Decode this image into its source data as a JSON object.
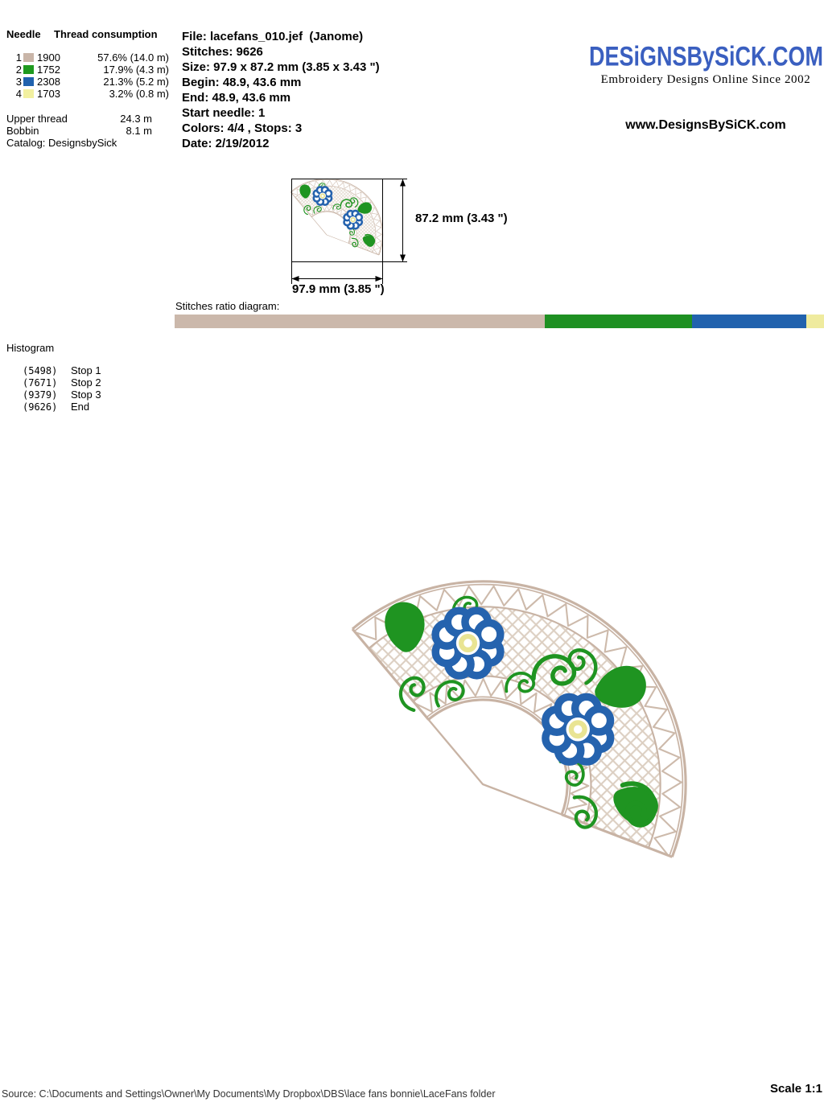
{
  "header": {
    "needle_table": {
      "col1": "Needle",
      "col2": "Thread consumption",
      "rows": [
        {
          "needle": "1",
          "color": "#c9b5a8",
          "thread": "1900",
          "consumption": "57.6% (14.0 m)"
        },
        {
          "needle": "2",
          "color": "#1f9a1f",
          "thread": "1752",
          "consumption": "17.9% (4.3 m)"
        },
        {
          "needle": "3",
          "color": "#2162ae",
          "thread": "2308",
          "consumption": "21.3% (5.2 m)"
        },
        {
          "needle": "4",
          "color": "#f2f0a0",
          "thread": "1703",
          "consumption": "3.2% (0.8 m)"
        }
      ],
      "upper_thread_label": "Upper thread",
      "upper_thread_value": "24.3 m",
      "bobbin_label": "Bobbin",
      "bobbin_value": "8.1 m",
      "catalog_label": "Catalog: DesignsbySick"
    },
    "file_info": {
      "lines": [
        "File: lacefans_010.jef  (Janome)",
        "Stitches: 9626",
        "Size: 97.9 x 87.2 mm (3.85 x 3.43 \")",
        "Begin: 48.9, 43.6 mm",
        "End: 48.9, 43.6 mm",
        "Start needle: 1",
        "Colors: 4/4 , Stops: 3",
        "Date: 2/19/2012"
      ]
    },
    "brand": {
      "logo_text": "DESiGNSBySiCK.COM",
      "tagline": "Embroidery Designs Online Since 2002",
      "website": "www.DesignsBySiCK.com",
      "logo_color": "#3a5fc0"
    }
  },
  "preview": {
    "height_label": "87.2 mm (3.43 \")",
    "width_label": "97.9 mm (3.85 \")"
  },
  "ratio": {
    "label": "Stitches ratio diagram:",
    "segments": [
      {
        "name": "needle-1-tan",
        "color": "#cbb8ab",
        "pct": 57.0
      },
      {
        "name": "needle-2-green",
        "color": "#1e9022",
        "pct": 22.7
      },
      {
        "name": "needle-3-blue",
        "color": "#2162ae",
        "pct": 17.6
      },
      {
        "name": "needle-4-yellow",
        "color": "#efeb9e",
        "pct": 2.7
      }
    ]
  },
  "histogram": {
    "title": "Histogram",
    "entries": [
      {
        "count": "(5498)",
        "label": "Stop 1"
      },
      {
        "count": "(7671)",
        "label": "Stop 2"
      },
      {
        "count": "(9379)",
        "label": "Stop 3"
      },
      {
        "count": "(9626)",
        "label": "End"
      }
    ]
  },
  "footer": {
    "source": "Source: C:\\Documents and Settings\\Owner\\My Documents\\My Dropbox\\DBS\\lace fans bonnie\\LaceFans folder",
    "scale": "Scale 1:1"
  },
  "artwork": {
    "colors": {
      "tan": "#c8b3a4",
      "tan_mid": "#cdbaab",
      "tan_light": "#dccfc2",
      "green": "#1f9421",
      "blue": "#2563ae",
      "yellow": "#e9e493",
      "dim_black": "#000000"
    }
  }
}
